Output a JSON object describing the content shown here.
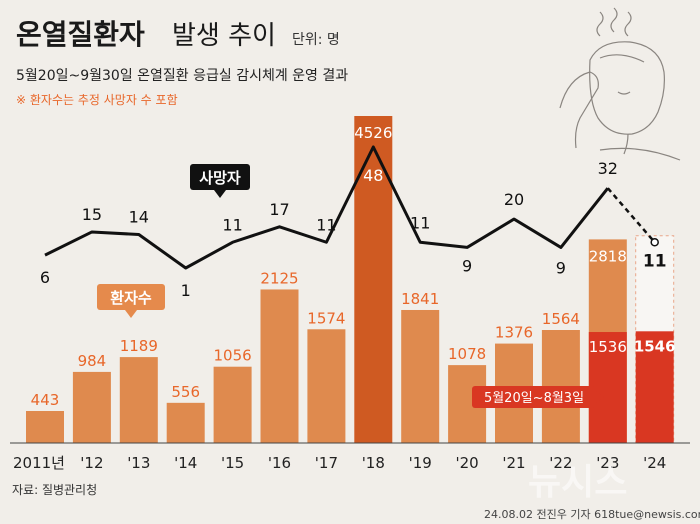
{
  "title": {
    "main": "온열질환자",
    "rest": "발생 추이",
    "unit": "단위: 명"
  },
  "subtitle": "5월20일~9월30일 온열질환 응급실 감시체계 운영 결과",
  "note": "※ 환자수는 추정 사망자 수 포함",
  "source": "자료: 질병관리청",
  "credit": "24.08.02 전진우 기자 618tue@newsis.com",
  "watermark": "뉴시스",
  "colors": {
    "background": "#f1eee9",
    "bar": "#df8a4e",
    "bar_peak": "#cf5a22",
    "bar_partial": "#d93722",
    "bar_projected": "#faf8f6",
    "line": "#111111",
    "accent_text": "#e8672a"
  },
  "chart_data": {
    "type": "bar",
    "categories": [
      "2011년",
      "'12",
      "'13",
      "'14",
      "'15",
      "'16",
      "'17",
      "'18",
      "'19",
      "'20",
      "'21",
      "'22",
      "'23",
      "'24"
    ],
    "series": [
      {
        "name": "환자수",
        "values": [
          443,
          984,
          1189,
          556,
          1056,
          2125,
          1574,
          4526,
          1841,
          1078,
          1376,
          1564,
          2818,
          null
        ],
        "partial_values": [
          null,
          null,
          null,
          null,
          null,
          null,
          null,
          null,
          null,
          null,
          null,
          null,
          1536,
          1546
        ],
        "partial_label": "5월20일~8월3일"
      },
      {
        "name": "사망자",
        "type": "line",
        "values": [
          6,
          15,
          14,
          1,
          11,
          17,
          11,
          48,
          11,
          9,
          20,
          9,
          32,
          11
        ]
      }
    ],
    "ylim": [
      0,
      4800
    ]
  }
}
